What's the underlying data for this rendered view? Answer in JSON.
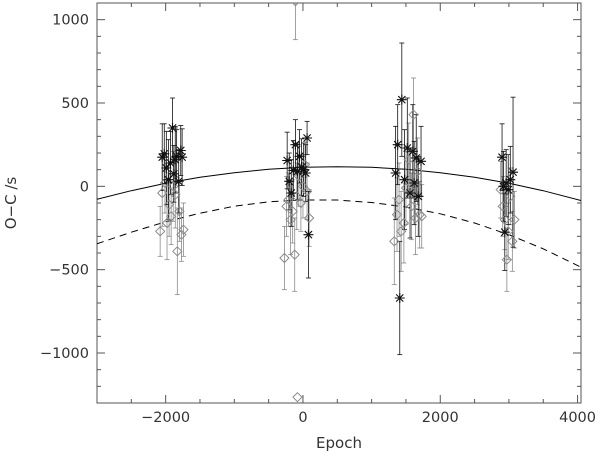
{
  "chart_data": {
    "type": "scatter",
    "title": "",
    "xlabel": "Epoch",
    "ylabel": "O−C /s",
    "xlim": [
      -3000,
      4050
    ],
    "ylim": [
      -1300,
      1100
    ],
    "x_ticks": [
      -2000,
      0,
      2000,
      4000
    ],
    "x_tick_labels": [
      "−2000",
      "0",
      "2000",
      "4000"
    ],
    "y_ticks": [
      -1000,
      -500,
      0,
      500,
      1000
    ],
    "y_tick_labels": [
      "−1000",
      "−500",
      "0",
      "500",
      "1000"
    ],
    "grid": false,
    "legend": "none",
    "colors": {
      "star_series": "#111111",
      "diamond_series": "#8a8a8a",
      "axes": "#555555"
    },
    "series": [
      {
        "marker": "star",
        "points": [
          {
            "x": -2050,
            "y": 175,
            "err": 200
          },
          {
            "x": -2020,
            "y": 195,
            "err": 180
          },
          {
            "x": -1990,
            "y": 110,
            "err": 220
          },
          {
            "x": -1960,
            "y": 40,
            "err": 240
          },
          {
            "x": -1930,
            "y": 140,
            "err": 190
          },
          {
            "x": -1900,
            "y": 350,
            "err": 180
          },
          {
            "x": -1880,
            "y": 75,
            "err": 170
          },
          {
            "x": -1860,
            "y": 160,
            "err": 200
          },
          {
            "x": -1840,
            "y": 180,
            "err": 160
          },
          {
            "x": -1810,
            "y": 30,
            "err": 190
          },
          {
            "x": -1780,
            "y": 215,
            "err": 150
          },
          {
            "x": -1760,
            "y": 175,
            "err": 170
          },
          {
            "x": -230,
            "y": 155,
            "err": 170
          },
          {
            "x": -200,
            "y": 30,
            "err": 170
          },
          {
            "x": -170,
            "y": -40,
            "err": 200
          },
          {
            "x": -140,
            "y": 95,
            "err": 180
          },
          {
            "x": -110,
            "y": 250,
            "err": 150
          },
          {
            "x": -80,
            "y": 90,
            "err": 170
          },
          {
            "x": -50,
            "y": 180,
            "err": 160
          },
          {
            "x": -20,
            "y": 115,
            "err": 170
          },
          {
            "x": 10,
            "y": 100,
            "err": 160
          },
          {
            "x": 40,
            "y": 80,
            "err": 170
          },
          {
            "x": 60,
            "y": 290,
            "err": 100
          },
          {
            "x": 80,
            "y": -290,
            "err": 260
          },
          {
            "x": 1350,
            "y": 80,
            "err": 280
          },
          {
            "x": 1380,
            "y": 250,
            "err": 240
          },
          {
            "x": 1410,
            "y": -670,
            "err": 340
          },
          {
            "x": 1440,
            "y": 520,
            "err": 340
          },
          {
            "x": 1480,
            "y": 40,
            "err": 300
          },
          {
            "x": 1520,
            "y": 230,
            "err": 300
          },
          {
            "x": 1560,
            "y": -40,
            "err": 270
          },
          {
            "x": 1600,
            "y": 210,
            "err": 280
          },
          {
            "x": 1620,
            "y": 20,
            "err": 250
          },
          {
            "x": 1650,
            "y": 170,
            "err": 260
          },
          {
            "x": 1680,
            "y": -60,
            "err": 240
          },
          {
            "x": 1720,
            "y": 150,
            "err": 210
          },
          {
            "x": 2900,
            "y": 175,
            "err": 200
          },
          {
            "x": 2920,
            "y": 0,
            "err": 210
          },
          {
            "x": 2940,
            "y": -275,
            "err": 230
          },
          {
            "x": 2960,
            "y": 20,
            "err": 200
          },
          {
            "x": 2990,
            "y": -20,
            "err": 210
          },
          {
            "x": 3020,
            "y": 40,
            "err": 200
          },
          {
            "x": 3060,
            "y": 85,
            "err": 450
          }
        ]
      },
      {
        "marker": "diamond",
        "points": [
          {
            "x": -2080,
            "y": -270,
            "err": 150
          },
          {
            "x": -2050,
            "y": -40,
            "err": 200
          },
          {
            "x": -2010,
            "y": 20,
            "err": 180
          },
          {
            "x": -1980,
            "y": -220,
            "err": 220
          },
          {
            "x": -1950,
            "y": -110,
            "err": 190
          },
          {
            "x": -1920,
            "y": -180,
            "err": 170
          },
          {
            "x": -1890,
            "y": 0,
            "err": 210
          },
          {
            "x": -1860,
            "y": -50,
            "err": 200
          },
          {
            "x": -1830,
            "y": -390,
            "err": 260
          },
          {
            "x": -1800,
            "y": -150,
            "err": 180
          },
          {
            "x": -1770,
            "y": -290,
            "err": 160
          },
          {
            "x": -1740,
            "y": -260,
            "err": 160
          },
          {
            "x": -270,
            "y": -430,
            "err": 190
          },
          {
            "x": -240,
            "y": -120,
            "err": 180
          },
          {
            "x": -210,
            "y": -80,
            "err": 160
          },
          {
            "x": -180,
            "y": -200,
            "err": 210
          },
          {
            "x": -150,
            "y": -150,
            "err": 190
          },
          {
            "x": -120,
            "y": -410,
            "err": 220
          },
          {
            "x": -90,
            "y": -60,
            "err": 200
          },
          {
            "x": -60,
            "y": 60,
            "err": 180
          },
          {
            "x": -30,
            "y": -100,
            "err": 170
          },
          {
            "x": 0,
            "y": 0,
            "err": 190
          },
          {
            "x": 30,
            "y": 130,
            "err": 160
          },
          {
            "x": 60,
            "y": -30,
            "err": 170
          },
          {
            "x": 90,
            "y": -190,
            "err": 170
          },
          {
            "x": -80,
            "y": -1265,
            "err": 0
          },
          {
            "x": -110,
            "y": 1110,
            "err": 230
          },
          {
            "x": 1330,
            "y": -330,
            "err": 260
          },
          {
            "x": 1370,
            "y": -170,
            "err": 220
          },
          {
            "x": 1400,
            "y": -80,
            "err": 220
          },
          {
            "x": 1430,
            "y": -270,
            "err": 240
          },
          {
            "x": 1470,
            "y": -220,
            "err": 240
          },
          {
            "x": 1500,
            "y": -10,
            "err": 220
          },
          {
            "x": 1540,
            "y": 160,
            "err": 220
          },
          {
            "x": 1580,
            "y": -120,
            "err": 200
          },
          {
            "x": 1610,
            "y": 430,
            "err": 220
          },
          {
            "x": 1640,
            "y": -190,
            "err": 220
          },
          {
            "x": 1670,
            "y": 90,
            "err": 200
          },
          {
            "x": 1700,
            "y": -170,
            "err": 200
          },
          {
            "x": 1730,
            "y": -180,
            "err": 190
          },
          {
            "x": 2880,
            "y": -20,
            "err": 170
          },
          {
            "x": 2910,
            "y": -120,
            "err": 180
          },
          {
            "x": 2940,
            "y": -200,
            "err": 180
          },
          {
            "x": 2970,
            "y": -440,
            "err": 190
          },
          {
            "x": 2990,
            "y": -270,
            "err": 170
          },
          {
            "x": 3020,
            "y": -60,
            "err": 170
          },
          {
            "x": 3050,
            "y": -330,
            "err": 180
          },
          {
            "x": 3080,
            "y": -200,
            "err": 170
          }
        ]
      }
    ],
    "curves": [
      {
        "style": "solid",
        "x": [
          -3000,
          -2500,
          -2000,
          -1500,
          -1000,
          -500,
          0,
          500,
          1000,
          1500,
          2000,
          2500,
          3000,
          3500,
          4050
        ],
        "y": [
          -78,
          -26,
          18,
          54,
          82,
          102,
          114,
          118,
          114,
          102,
          82,
          54,
          18,
          -26,
          -85
        ]
      },
      {
        "style": "dashed",
        "x": [
          -3000,
          -2500,
          -2000,
          -1500,
          -1000,
          -500,
          0,
          500,
          1000,
          1500,
          2000,
          2500,
          3000,
          3500,
          4050
        ],
        "y": [
          -345,
          -275,
          -213,
          -161,
          -119,
          -93,
          -82,
          -82,
          -97,
          -124,
          -165,
          -220,
          -290,
          -375,
          -485
        ]
      }
    ]
  }
}
